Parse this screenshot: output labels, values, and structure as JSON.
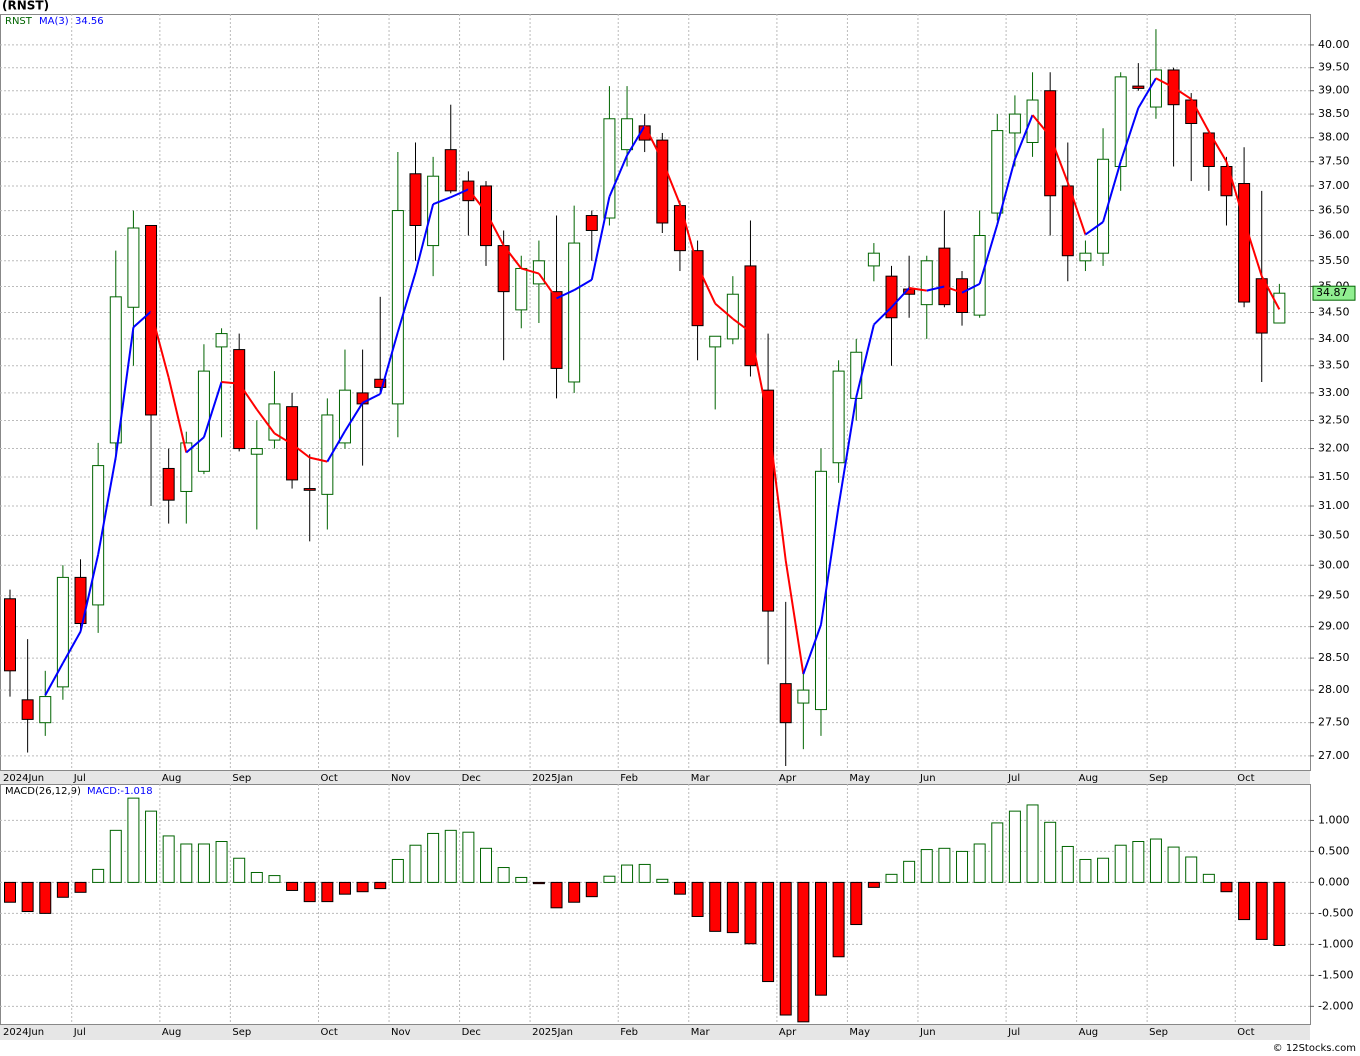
{
  "chart_data": [
    {
      "type": "candlestick",
      "title": "(RNST)",
      "symbol": "RNST",
      "categories": [
        "2024Jun",
        null,
        null,
        null,
        "Jul",
        null,
        null,
        null,
        null,
        "Aug",
        null,
        null,
        null,
        "Sep",
        null,
        null,
        null,
        null,
        "Oct",
        null,
        null,
        null,
        "Nov",
        null,
        null,
        null,
        "Dec",
        null,
        null,
        null,
        "2025Jan",
        null,
        null,
        null,
        null,
        "Feb",
        null,
        null,
        null,
        "Mar",
        null,
        null,
        null,
        null,
        "Apr",
        null,
        null,
        null,
        "May",
        null,
        null,
        null,
        "Jun",
        null,
        null,
        null,
        null,
        "Jul",
        null,
        null,
        null,
        "Aug",
        null,
        null,
        null,
        "Sep",
        null,
        null,
        null,
        null,
        "Oct",
        null,
        null
      ],
      "open": [
        29.45,
        27.85,
        27.5,
        28.05,
        29.8,
        29.35,
        32.1,
        34.6,
        36.2,
        31.65,
        31.25,
        31.6,
        33.85,
        33.8,
        31.9,
        32.15,
        32.75,
        31.3,
        31.2,
        32.1,
        33.0,
        33.25,
        32.8,
        37.25,
        35.8,
        37.75,
        37.1,
        37.0,
        35.8,
        34.55,
        35.05,
        34.9,
        33.2,
        36.4,
        36.35,
        37.75,
        38.25,
        37.95,
        36.6,
        35.7,
        33.85,
        34.0,
        35.4,
        33.05,
        28.1,
        27.8,
        27.7,
        31.75,
        32.9,
        35.4,
        35.2,
        34.95,
        34.65,
        35.75,
        35.15,
        34.45,
        36.45,
        38.1,
        37.9,
        39.0,
        37.0,
        35.5,
        35.65,
        37.4,
        39.1,
        38.65,
        39.45,
        38.8,
        38.1,
        37.4,
        37.05,
        35.15,
        34.3
      ],
      "high": [
        29.6,
        28.8,
        28.3,
        30.0,
        30.1,
        32.1,
        35.7,
        36.5,
        36.2,
        32.0,
        32.3,
        33.9,
        34.2,
        34.1,
        32.5,
        33.4,
        33.0,
        31.9,
        32.9,
        33.8,
        33.8,
        34.8,
        37.7,
        37.9,
        37.6,
        38.7,
        37.3,
        37.1,
        36.1,
        35.6,
        35.9,
        36.4,
        36.6,
        36.5,
        39.1,
        39.1,
        38.5,
        38.1,
        36.7,
        35.9,
        34.05,
        35.2,
        36.3,
        34.1,
        29.4,
        28.3,
        32.0,
        33.6,
        34.0,
        35.85,
        35.4,
        35.6,
        35.6,
        36.5,
        35.3,
        36.5,
        38.5,
        38.9,
        39.4,
        39.4,
        37.9,
        35.9,
        38.2,
        39.4,
        39.6,
        40.35,
        39.5,
        38.95,
        38.15,
        37.6,
        37.8,
        36.9,
        35.05
      ],
      "low": [
        27.9,
        27.05,
        27.3,
        27.85,
        28.9,
        28.9,
        31.8,
        33.5,
        31.0,
        30.7,
        30.7,
        31.55,
        32.2,
        31.95,
        30.6,
        32.0,
        31.3,
        30.4,
        30.6,
        32.0,
        31.7,
        33.0,
        32.2,
        35.5,
        35.2,
        36.85,
        36.0,
        35.4,
        33.6,
        34.2,
        34.3,
        32.9,
        33.0,
        35.5,
        36.2,
        37.4,
        37.7,
        36.05,
        35.3,
        33.6,
        32.7,
        33.9,
        33.3,
        28.4,
        26.85,
        27.1,
        27.3,
        31.4,
        32.5,
        35.1,
        33.5,
        34.4,
        34.0,
        34.6,
        34.25,
        34.4,
        36.3,
        37.4,
        37.6,
        36.0,
        35.1,
        35.3,
        35.4,
        36.9,
        39.0,
        38.4,
        37.4,
        37.1,
        36.9,
        36.2,
        34.6,
        33.2,
        34.3
      ],
      "close": [
        28.3,
        27.55,
        27.9,
        29.8,
        29.05,
        31.7,
        34.8,
        36.15,
        32.6,
        31.1,
        32.1,
        33.4,
        34.1,
        32.0,
        32.0,
        32.8,
        31.45,
        31.27,
        32.6,
        33.05,
        32.8,
        33.1,
        36.5,
        36.2,
        37.2,
        36.9,
        36.7,
        35.8,
        34.9,
        35.35,
        35.5,
        33.45,
        35.85,
        36.1,
        38.4,
        38.4,
        37.95,
        36.25,
        35.7,
        34.25,
        34.05,
        34.85,
        33.5,
        29.25,
        27.5,
        28.0,
        31.6,
        33.4,
        33.75,
        35.65,
        34.4,
        34.85,
        35.5,
        34.65,
        34.5,
        36.0,
        38.15,
        38.5,
        38.8,
        36.8,
        35.6,
        35.65,
        37.55,
        39.3,
        39.05,
        39.45,
        38.7,
        38.3,
        37.4,
        36.8,
        34.7,
        34.11,
        34.87
      ],
      "up_color": "#ffffff",
      "up_edge": "#006400",
      "down_color": "#ff0000",
      "down_edge": "#000000",
      "series": [
        {
          "name": "MA(3)",
          "color": "#0000ff",
          "up_color": "#0000ff",
          "down_color": "#ff0000",
          "values": [
            null,
            null,
            27.92,
            28.42,
            28.92,
            30.18,
            31.85,
            34.22,
            34.52,
            33.28,
            31.93,
            32.2,
            33.2,
            33.17,
            32.7,
            32.27,
            32.08,
            31.84,
            31.77,
            32.31,
            32.82,
            32.98,
            34.13,
            35.27,
            36.63,
            36.77,
            36.93,
            36.47,
            35.8,
            35.35,
            35.25,
            34.77,
            34.93,
            35.13,
            36.78,
            37.63,
            38.25,
            37.53,
            36.63,
            35.4,
            34.67,
            34.38,
            34.13,
            32.53,
            30.08,
            28.25,
            29.03,
            31.0,
            32.92,
            34.27,
            34.6,
            34.97,
            34.92,
            35.0,
            34.88,
            35.05,
            36.22,
            37.55,
            38.48,
            38.03,
            37.07,
            36.02,
            36.27,
            37.5,
            38.63,
            39.27,
            39.07,
            38.82,
            38.13,
            37.5,
            36.3,
            35.2,
            34.56
          ]
        }
      ],
      "log": true,
      "grid": true,
      "ylim": [
        26.79,
        40.69
      ],
      "yticks": [
        {
          "value": 27,
          "label": "27.00"
        },
        {
          "value": 27.5,
          "label": "27.50"
        },
        {
          "value": 28,
          "label": "28.00"
        },
        {
          "value": 28.5,
          "label": "28.50"
        },
        {
          "value": 29,
          "label": "29.00"
        },
        {
          "value": 29.5,
          "label": "29.50"
        },
        {
          "value": 30,
          "label": "30.00"
        },
        {
          "value": 30.5,
          "label": "30.50"
        },
        {
          "value": 31,
          "label": "31.00"
        },
        {
          "value": 31.5,
          "label": "31.50"
        },
        {
          "value": 32,
          "label": "32.00"
        },
        {
          "value": 32.5,
          "label": "32.50"
        },
        {
          "value": 33,
          "label": "33.00"
        },
        {
          "value": 33.5,
          "label": "33.50"
        },
        {
          "value": 34,
          "label": "34.00"
        },
        {
          "value": 34.5,
          "label": "34.50"
        },
        {
          "value": 35,
          "label": "35.00"
        },
        {
          "value": 35.5,
          "label": "35.50"
        },
        {
          "value": 36,
          "label": "36.00"
        },
        {
          "value": 36.5,
          "label": "36.50"
        },
        {
          "value": 37,
          "label": "37.00"
        },
        {
          "value": 37.5,
          "label": "37.50"
        },
        {
          "value": 38,
          "label": "38.00"
        },
        {
          "value": 38.5,
          "label": "38.50"
        },
        {
          "value": 39,
          "label": "39.00"
        },
        {
          "value": 39.5,
          "label": "39.50"
        },
        {
          "value": 40,
          "label": "40.00"
        }
      ]
    },
    {
      "type": "bar",
      "title": "MACD(26,12,9)",
      "legend_text": "MACD:-1.018",
      "categories": [
        "2024Jun",
        null,
        null,
        null,
        "Jul",
        null,
        null,
        null,
        null,
        "Aug",
        null,
        null,
        null,
        "Sep",
        null,
        null,
        null,
        null,
        "Oct",
        null,
        null,
        null,
        "Nov",
        null,
        null,
        null,
        "Dec",
        null,
        null,
        null,
        "2025Jan",
        null,
        null,
        null,
        null,
        "Feb",
        null,
        null,
        null,
        "Mar",
        null,
        null,
        null,
        null,
        "Apr",
        null,
        null,
        null,
        "May",
        null,
        null,
        null,
        "Jun",
        null,
        null,
        null,
        null,
        "Jul",
        null,
        null,
        null,
        "Aug",
        null,
        null,
        null,
        "Sep",
        null,
        null,
        null,
        null,
        "Oct",
        null,
        null
      ],
      "values": [
        -0.32,
        -0.47,
        -0.5,
        -0.24,
        -0.16,
        0.21,
        0.84,
        1.36,
        1.15,
        0.75,
        0.62,
        0.62,
        0.66,
        0.39,
        0.16,
        0.11,
        -0.13,
        -0.31,
        -0.31,
        -0.19,
        -0.15,
        -0.1,
        0.37,
        0.6,
        0.79,
        0.84,
        0.81,
        0.55,
        0.24,
        0.08,
        -0.02,
        -0.41,
        -0.32,
        -0.23,
        0.1,
        0.28,
        0.29,
        0.05,
        -0.19,
        -0.55,
        -0.79,
        -0.81,
        -0.99,
        -1.6,
        -2.14,
        -2.25,
        -1.82,
        -1.2,
        -0.68,
        -0.08,
        0.13,
        0.34,
        0.53,
        0.55,
        0.5,
        0.62,
        0.96,
        1.15,
        1.25,
        0.97,
        0.58,
        0.37,
        0.39,
        0.6,
        0.66,
        0.7,
        0.57,
        0.41,
        0.13,
        -0.15,
        -0.6,
        -0.92,
        -1.018
      ],
      "pos_color": "#ffffff",
      "pos_edge": "#006400",
      "neg_color": "#ff0000",
      "neg_edge": "#000000",
      "grid": true,
      "ylim": [
        -2.285,
        1.588
      ],
      "yticks": [
        {
          "value": 1,
          "label": "1.000"
        },
        {
          "value": 0.5,
          "label": "0.500"
        },
        {
          "value": 0,
          "label": "0.000"
        },
        {
          "value": -0.5,
          "label": "-0.500"
        },
        {
          "value": -1,
          "label": "-1.000"
        },
        {
          "value": -1.5,
          "label": "-1.500"
        },
        {
          "value": -2,
          "label": "-2.000"
        }
      ]
    }
  ],
  "footer": "© 12Stocks.com"
}
